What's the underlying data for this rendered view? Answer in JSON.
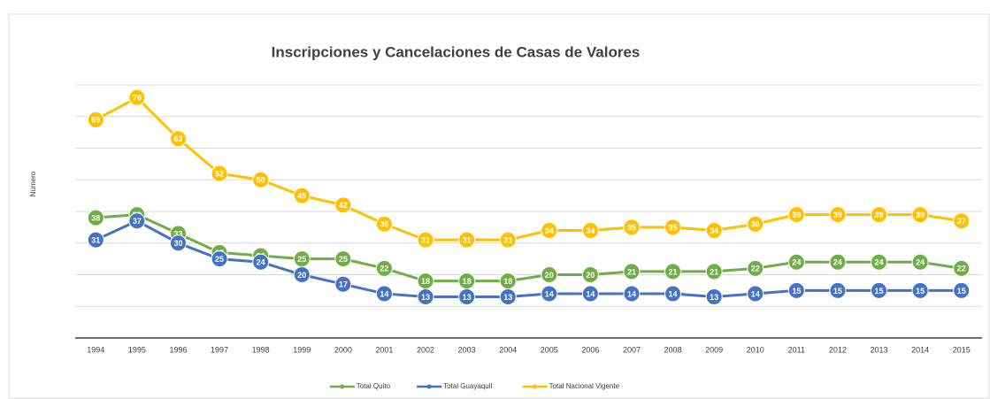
{
  "chart_data": {
    "type": "line",
    "title": "Inscripciones y Cancelaciones de Casas de Valores",
    "y_label": "Número",
    "categories": [
      "1994",
      "1995",
      "1996",
      "1997",
      "1998",
      "1999",
      "2000",
      "2001",
      "2002",
      "2003",
      "2004",
      "2005",
      "2006",
      "2007",
      "2008",
      "2009",
      "2010",
      "2011",
      "2012",
      "2013",
      "2014",
      "2015"
    ],
    "series": [
      {
        "name": "Total Quito",
        "color": "#70ad47",
        "values": [
          38,
          39,
          33,
          27,
          26,
          25,
          25,
          22,
          18,
          18,
          18,
          20,
          20,
          21,
          21,
          21,
          22,
          24,
          24,
          24,
          24,
          22
        ]
      },
      {
        "name": "Total Guayaquil",
        "color": "#4472c4",
        "values": [
          31,
          37,
          30,
          25,
          24,
          20,
          17,
          14,
          13,
          13,
          13,
          14,
          14,
          14,
          14,
          13,
          14,
          15,
          15,
          15,
          15,
          15
        ]
      },
      {
        "name": "Total Nacional Vigente",
        "color": "#ffc000",
        "values": [
          69,
          76,
          63,
          52,
          50,
          45,
          42,
          36,
          31,
          31,
          31,
          34,
          34,
          35,
          35,
          34,
          36,
          39,
          39,
          39,
          39,
          37
        ]
      }
    ],
    "ylim": [
      0,
      80
    ],
    "yticks": [
      0,
      10,
      20,
      30,
      40,
      50,
      60,
      70,
      80
    ],
    "grid": true,
    "legend": "bottom"
  }
}
